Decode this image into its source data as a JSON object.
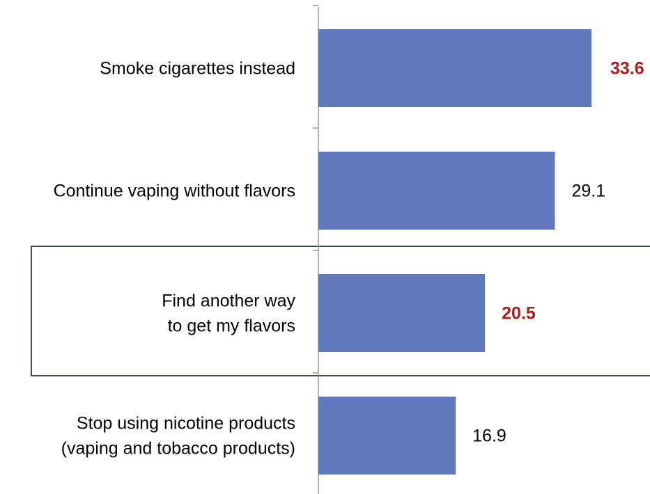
{
  "chart_data": {
    "type": "bar",
    "orientation": "horizontal",
    "categories": [
      [
        "Smoke cigarettes instead"
      ],
      [
        "Continue vaping without flavors"
      ],
      [
        "Find another way",
        "to get my flavors"
      ],
      [
        "Stop using nicotine products",
        "(vaping and tobacco products)"
      ]
    ],
    "values": [
      33.6,
      29.1,
      20.5,
      16.9
    ],
    "value_labels": [
      "33.6",
      "29.1",
      "20.5",
      "16.9"
    ],
    "highlighted": [
      true,
      false,
      true,
      false
    ],
    "highlight_box_index": 2,
    "title": "",
    "xlabel": "",
    "ylabel": "",
    "xlim": [
      0,
      36
    ],
    "grid": false,
    "legend": "none",
    "colors": {
      "bar": "#6079bd",
      "highlight_text": "#b01c1c",
      "normal_text": "#000000",
      "axis": "#999999",
      "box": "#3d4b5e"
    }
  }
}
